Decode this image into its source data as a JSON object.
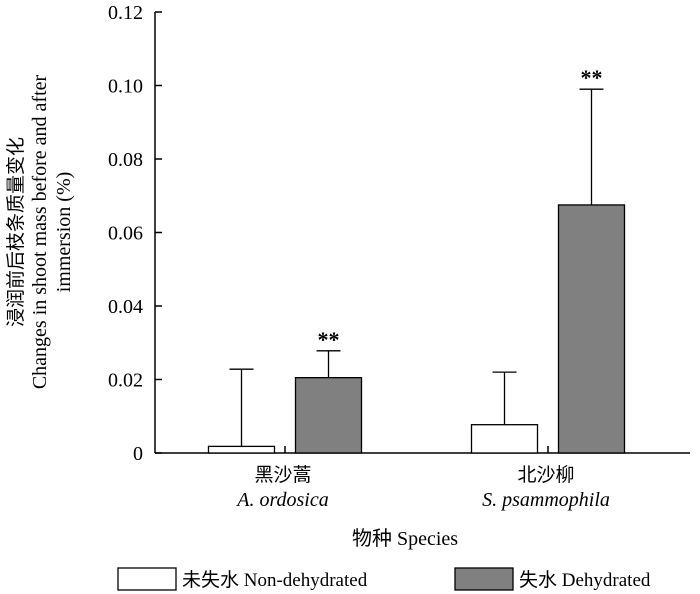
{
  "chart_data": {
    "type": "bar",
    "categories": [
      {
        "cn": "黑沙蒿",
        "latin": "A. ordosica"
      },
      {
        "cn": "北沙柳",
        "latin": "S. psammophila"
      }
    ],
    "series": [
      {
        "name": "未失水 Non-dehydrated",
        "color": "#ffffff",
        "values": [
          0.0018,
          0.0077
        ],
        "errors": [
          0.021,
          0.0143
        ],
        "sig": [
          "",
          ""
        ]
      },
      {
        "name": "失水 Dehydrated",
        "color": "#808080",
        "values": [
          0.0205,
          0.0675
        ],
        "errors": [
          0.0073,
          0.0315
        ],
        "sig": [
          "**",
          "**"
        ]
      }
    ],
    "ylim": [
      0,
      0.12
    ],
    "yticks": [
      "0",
      "0.02",
      "0.04",
      "0.06",
      "0.08",
      "0.10",
      "0.12"
    ],
    "ylabel_lines": [
      "浸润前后枝条质量变化",
      "Changes in shoot mass before and after",
      "immersion (%)"
    ],
    "xlabel": "物种 Species",
    "legend_position": "bottom"
  }
}
